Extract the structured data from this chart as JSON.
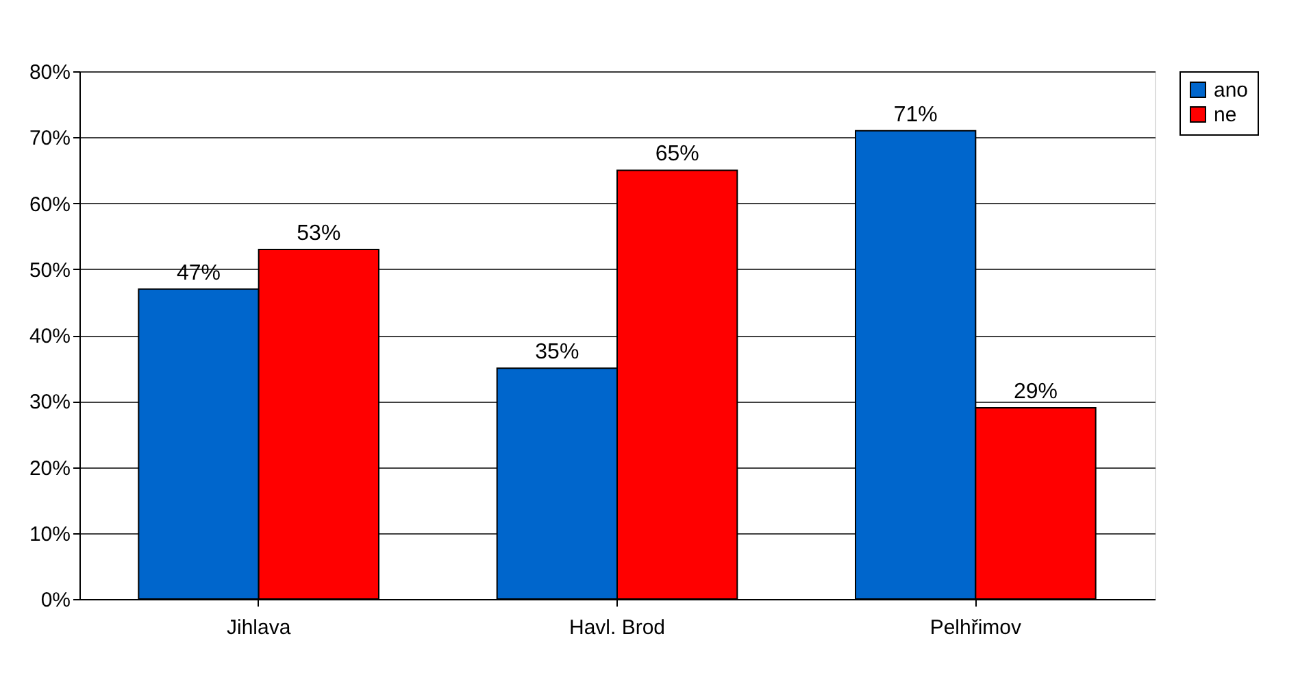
{
  "chart_data": {
    "type": "bar",
    "categories": [
      "Jihlava",
      "Havl. Brod",
      "Pelhřimov"
    ],
    "series": [
      {
        "name": "ano",
        "color": "#0066cc",
        "values": [
          47,
          35,
          71
        ],
        "value_labels": [
          "47%",
          "35%",
          "71%"
        ]
      },
      {
        "name": "ne",
        "color": "#ff0000",
        "values": [
          53,
          65,
          29
        ],
        "value_labels": [
          "53%",
          "65%",
          "29%"
        ]
      }
    ],
    "ylim": [
      0,
      80
    ],
    "yticks": [
      {
        "value": 0,
        "label": "0%"
      },
      {
        "value": 10,
        "label": "10%"
      },
      {
        "value": 20,
        "label": "20%"
      },
      {
        "value": 30,
        "label": "30%"
      },
      {
        "value": 40,
        "label": "40%"
      },
      {
        "value": 50,
        "label": "50%"
      },
      {
        "value": 60,
        "label": "60%"
      },
      {
        "value": 70,
        "label": "70%"
      },
      {
        "value": 80,
        "label": "80%"
      }
    ],
    "grid": "y",
    "legend": "right"
  }
}
